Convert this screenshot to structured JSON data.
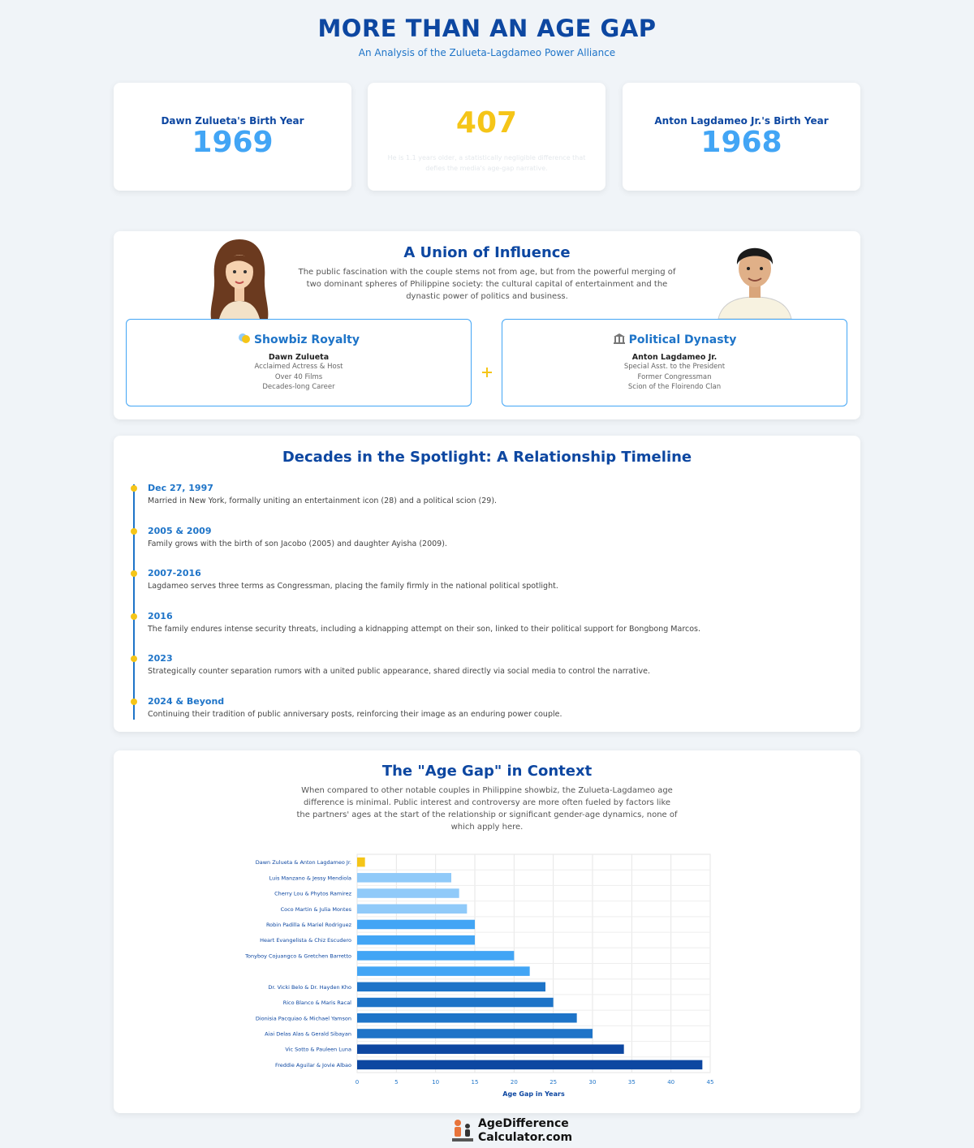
{
  "header": {
    "title": "MORE THAN AN AGE GAP",
    "subtitle": "An Analysis of the Zulueta-Lagdameo Power Alliance"
  },
  "stats": [
    {
      "label": "Dawn Zulueta's Birth Year",
      "value": 1969
    },
    {
      "value": 407,
      "note": "He is 1.1 years older, a statistically negligible difference that defies the media's age-gap narrative."
    },
    {
      "label": "Anton Lagdameo Jr.'s Birth Year",
      "value": 1968
    }
  ],
  "union": {
    "title": "A Union of Influence",
    "text": "The public fascination with the couple stems not from age, but from the powerful merging of two dominant spheres of Philippine society: the cultural capital of entertainment and the dynastic power of politics and business.",
    "cards": [
      {
        "title": "Showbiz Royalty",
        "name": "Dawn Zulueta",
        "lines": [
          "Acclaimed Actress & Host",
          "Over 40 Films",
          "Decades-long Career"
        ]
      },
      {
        "title": "Political Dynasty",
        "name": "Anton Lagdameo Jr.",
        "lines": [
          "Special Asst. to the President",
          "Former Congressman",
          "Scion of the Floirendo Clan"
        ]
      }
    ]
  },
  "timeline": {
    "title": "Decades in the Spotlight: A Relationship Timeline",
    "events": [
      {
        "date": "Dec 27, 1997",
        "text": "Married in New York, formally uniting an entertainment icon (28) and a political scion (29)."
      },
      {
        "date": "2005 & 2009",
        "text": "Family grows with the birth of son Jacobo (2005) and daughter Ayisha (2009)."
      },
      {
        "date": "2007-2016",
        "text": "Lagdameo serves three terms as Congressman, placing the family firmly in the national political spotlight."
      },
      {
        "date": "2016",
        "text": "The family endures intense security threats, including a kidnapping attempt on their son, linked to their political support for Bongbong Marcos."
      },
      {
        "date": "2023",
        "text": "Strategically counter separation rumors with a united public appearance, shared directly via social media to control the narrative."
      },
      {
        "date": "2024 & Beyond",
        "text": "Continuing their tradition of public anniversary posts, reinforcing their image as an enduring power couple."
      }
    ]
  },
  "context": {
    "title": "The \"Age Gap\" in Context",
    "text": "When compared to other notable couples in Philippine showbiz, the Zulueta-Lagdameo age difference is minimal. Public interest and controversy are more often fueled by factors like the partners' ages at the start of the relationship or significant gender-age dynamics, none of which apply here."
  },
  "chart_data": {
    "type": "bar",
    "orientation": "horizontal",
    "categories": [
      "Dawn Zulueta & Anton Lagdameo Jr.",
      "Luis Manzano & Jessy Mendiola",
      "Cherry Lou & Phytos Ramirez",
      "Coco Martin & Julia Montes",
      "Robin Padilla & Mariel Rodriguez",
      "Heart Evangelista & Chiz Escudero",
      "Tonyboy Cojuangco & Gretchen Barretto",
      null,
      "Dr. Vicki Belo & Dr. Hayden Kho",
      "Rico Blanco & Maris Racal",
      "Dionisia Pacquiao & Michael Yamson",
      "Aiai Delas Alas & Gerald Sibayan",
      "Vic Sotto & Pauleen Luna",
      "Freddie Aguilar & Jovie Albao"
    ],
    "values": [
      1,
      12,
      13,
      14,
      15,
      15,
      20,
      22,
      24,
      25,
      28,
      30,
      34,
      44
    ],
    "colors": [
      "#f5c518",
      "#90caf9",
      "#90caf9",
      "#90caf9",
      "#42a5f5",
      "#42a5f5",
      "#42a5f5",
      "#42a5f5",
      "#1e74c8",
      "#1e74c8",
      "#1e74c8",
      "#1e74c8",
      "#0d47a1",
      "#0d47a1"
    ],
    "x_label": "Age Gap in Years",
    "xlim": [
      0,
      45
    ],
    "xticks": [
      0,
      5,
      10,
      15,
      20,
      25,
      30,
      35,
      40,
      45
    ],
    "grid": true
  },
  "footer": {
    "brand_line1": "AgeDifference",
    "brand_line2": "Calculator.com"
  }
}
